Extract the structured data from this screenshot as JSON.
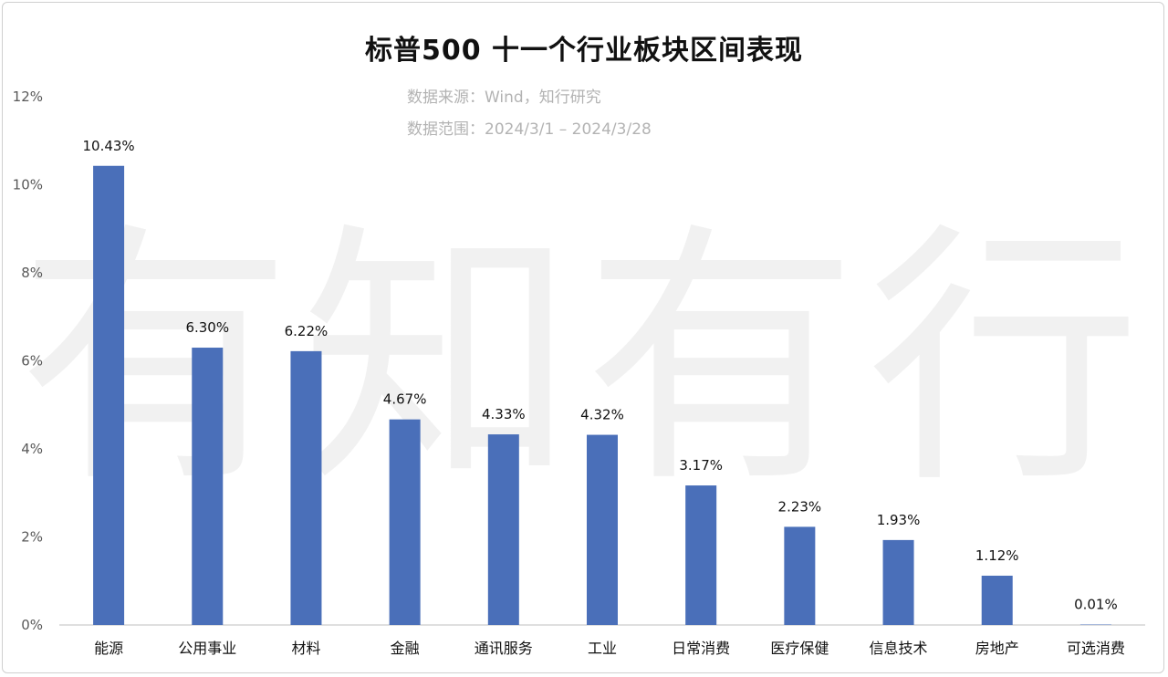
{
  "chart_data": {
    "type": "bar",
    "title": "标普500 十一个行业板块区间表现",
    "subtitles": [
      "数据来源：Wind，知行研究",
      "数据范围：2024/3/1 – 2024/3/28"
    ],
    "watermark": "有知有行",
    "categories": [
      "能源",
      "公用事业",
      "材料",
      "金融",
      "通讯服务",
      "工业",
      "日常消费",
      "医疗保健",
      "信息技术",
      "房地产",
      "可选消费"
    ],
    "values": [
      10.43,
      6.3,
      6.22,
      4.67,
      4.33,
      4.32,
      3.17,
      2.23,
      1.93,
      1.12,
      0.01
    ],
    "data_labels": [
      "10.43%",
      "6.30%",
      "6.22%",
      "4.67%",
      "4.33%",
      "4.32%",
      "3.17%",
      "2.23%",
      "1.93%",
      "1.12%",
      "0.01%"
    ],
    "y_ticks": [
      0,
      2,
      4,
      6,
      8,
      10,
      12
    ],
    "y_tick_labels": [
      "0%",
      "2%",
      "4%",
      "6%",
      "8%",
      "10%",
      "12%"
    ],
    "ylim": [
      0,
      12
    ],
    "xlabel": "",
    "ylabel": "",
    "grid": false,
    "bar_color": "#4a6fb9"
  }
}
